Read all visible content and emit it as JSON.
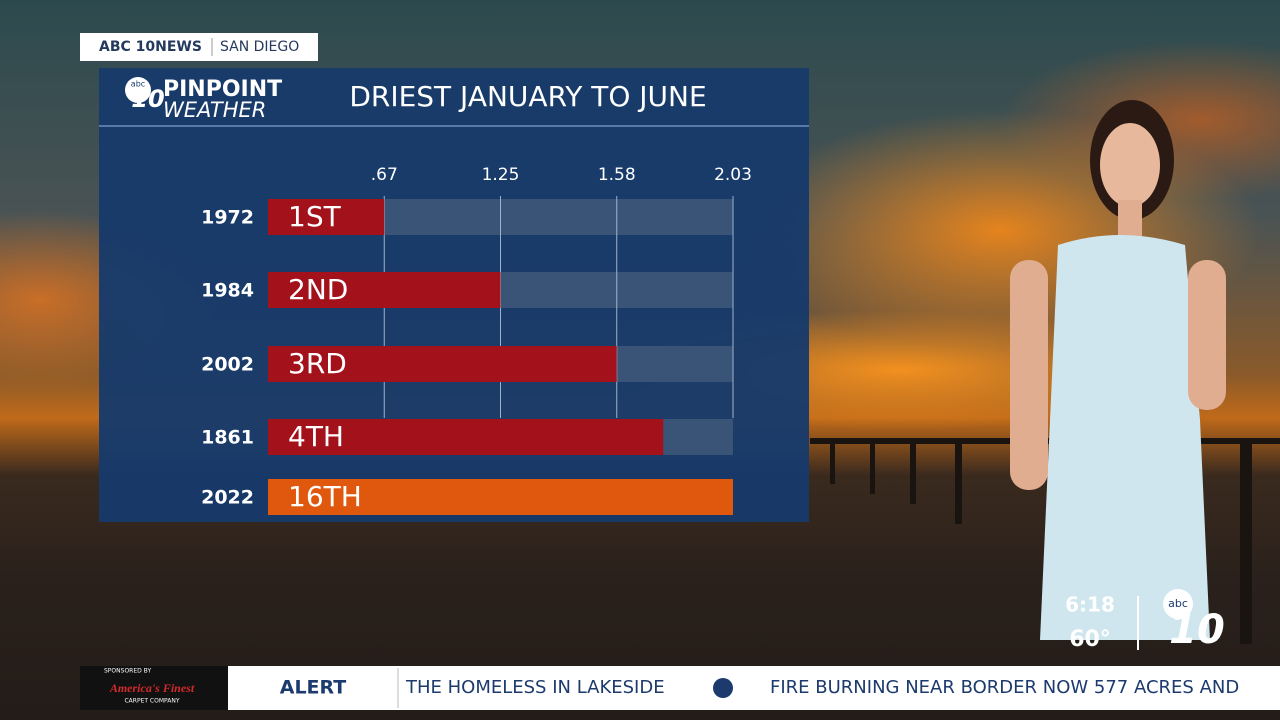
{
  "header": {
    "network": "ABC 10NEWS",
    "city": "SAN DIEGO"
  },
  "logo": {
    "badge": "abc",
    "number": "10",
    "brand": "PINPOINT",
    "sub": "WEATHER"
  },
  "chart_data": {
    "type": "hbar",
    "title": "DRIEST JANUARY TO JUNE",
    "categories": [
      "1972",
      "1984",
      "2002",
      "1861",
      "2022"
    ],
    "values": [
      0.67,
      1.25,
      1.58,
      1.76,
      2.03
    ],
    "ranks": [
      "1ST",
      "2ND",
      "3RD",
      "4TH",
      "16TH"
    ],
    "colors": [
      "#a3111b",
      "#a3111b",
      "#a3111b",
      "#a3111b",
      "#e0580e"
    ],
    "xlim": [
      0,
      2.03
    ],
    "xticks": [
      {
        "value": 0.67,
        "label": ".67"
      },
      1.25,
      1.58,
      2.03
    ],
    "scale": "tick-spaced",
    "grid": true
  },
  "sponsor": {
    "label": "SPONSORED BY",
    "name": "America's Finest",
    "sub": "CARPET COMPANY"
  },
  "ticker": {
    "tag": "ALERT",
    "items": [
      "THE HOMELESS IN LAKESIDE",
      "FIRE BURNING NEAR BORDER NOW 577 ACRES AND"
    ]
  },
  "clock": {
    "time": "6:18",
    "temp": "60°",
    "badge": "abc",
    "number": "10"
  }
}
